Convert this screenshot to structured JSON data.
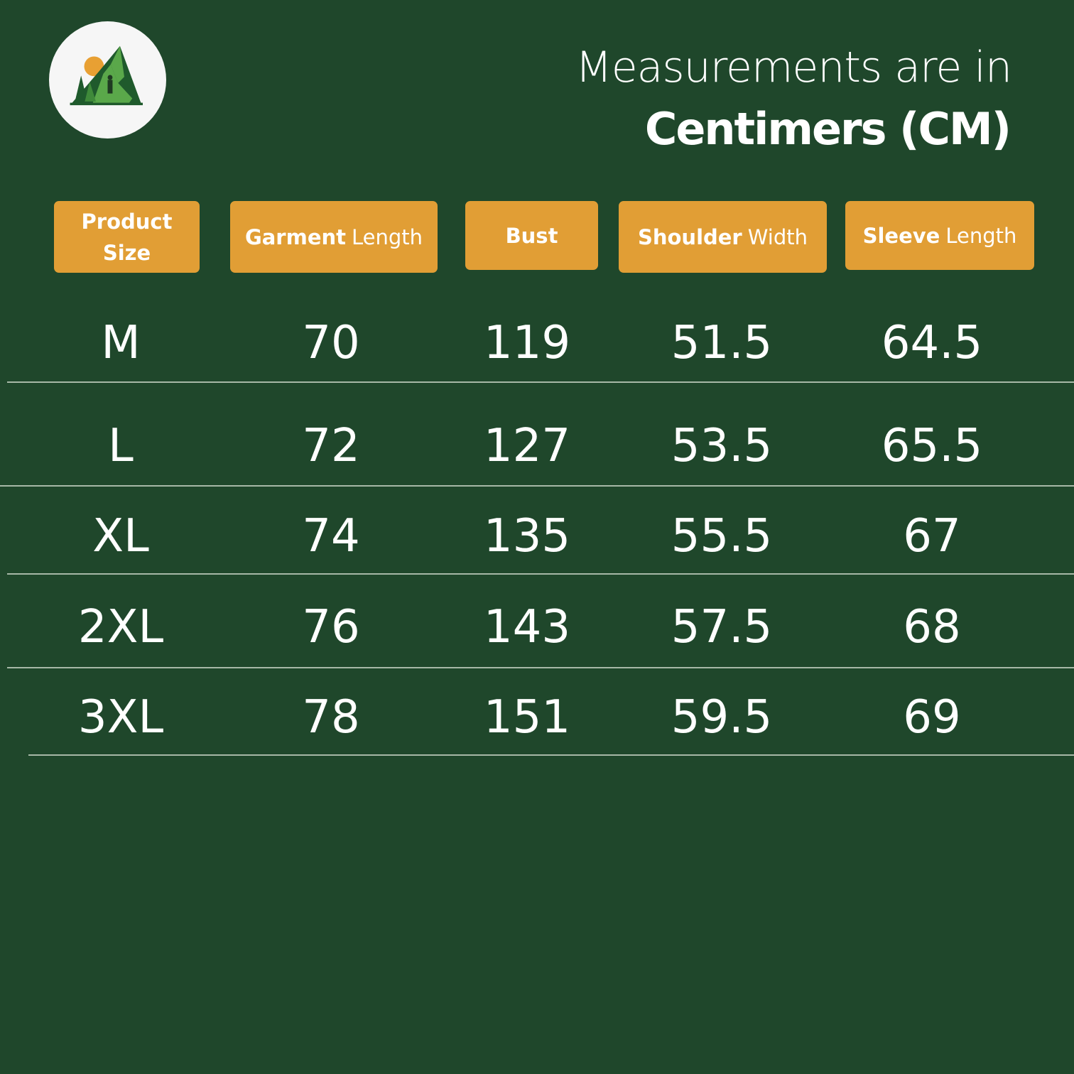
{
  "logo": {
    "name": "mountain-hiker-logo",
    "colors": {
      "sun": "#e8a033",
      "mountain_dark": "#1f5a2c",
      "mountain_light": "#5aa84a"
    }
  },
  "header": {
    "line1": "Measurements are in",
    "line2": "Centimers (CM)"
  },
  "colors": {
    "background": "#1f472b",
    "header_badge": "#e19e35",
    "text": "#ffffff"
  },
  "table": {
    "columns": [
      {
        "bold": "Product Size",
        "light": ""
      },
      {
        "bold": "Garment",
        "light": "Length"
      },
      {
        "bold": "Bust",
        "light": ""
      },
      {
        "bold": "Shoulder",
        "light": "Width"
      },
      {
        "bold": "Sleeve",
        "light": "Length"
      }
    ],
    "rows": [
      [
        "M",
        "70",
        "119",
        "51.5",
        "64.5"
      ],
      [
        "L",
        "72",
        "127",
        "53.5",
        "65.5"
      ],
      [
        "XL",
        "74",
        "135",
        "55.5",
        "67"
      ],
      [
        "2XL",
        "76",
        "143",
        "57.5",
        "68"
      ],
      [
        "3XL",
        "78",
        "151",
        "59.5",
        "69"
      ]
    ]
  }
}
